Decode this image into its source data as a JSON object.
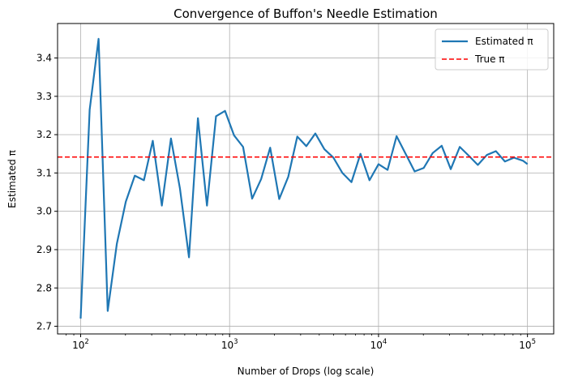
{
  "chart_data": {
    "type": "line",
    "title": "Convergence of Buffon's Needle Estimation",
    "xlabel": "Number of Drops (log scale)",
    "ylabel": "Estimated π",
    "xscale": "log",
    "xlim": [
      70,
      150000
    ],
    "ylim": [
      2.68,
      3.49
    ],
    "grid": true,
    "legend_position": "top-right",
    "x_ticks": [
      {
        "value": 100,
        "base": "10",
        "exp": "2"
      },
      {
        "value": 1000,
        "base": "10",
        "exp": "3"
      },
      {
        "value": 10000,
        "base": "10",
        "exp": "4"
      },
      {
        "value": 100000,
        "base": "10",
        "exp": "5"
      }
    ],
    "y_ticks": [
      {
        "value": 2.7,
        "label": "2.7"
      },
      {
        "value": 2.8,
        "label": "2.8"
      },
      {
        "value": 2.9,
        "label": "2.9"
      },
      {
        "value": 3.0,
        "label": "3.0"
      },
      {
        "value": 3.1,
        "label": "3.1"
      },
      {
        "value": 3.2,
        "label": "3.2"
      },
      {
        "value": 3.3,
        "label": "3.3"
      },
      {
        "value": 3.4,
        "label": "3.4"
      }
    ],
    "series": [
      {
        "name": "Estimated π",
        "style": "solid",
        "color": "#1f77b4",
        "x": [
          100,
          115,
          132,
          152,
          175,
          201,
          231,
          266,
          305,
          351,
          404,
          464,
          534,
          613,
          705,
          811,
          932,
          1072,
          1232,
          1417,
          1629,
          1873,
          2154,
          2477,
          2848,
          3275,
          3765,
          4329,
          4977,
          5722,
          6579,
          7565,
          8697,
          10000,
          11498,
          13219,
          15199,
          17475,
          20092,
          23101,
          26561,
          30539,
          35112,
          40370,
          46416,
          53367,
          61359,
          70548,
          81113,
          93260,
          100000
        ],
        "y": [
          2.72,
          3.265,
          3.45,
          2.74,
          2.915,
          3.025,
          3.093,
          3.081,
          3.184,
          3.015,
          3.19,
          3.06,
          2.88,
          3.243,
          3.015,
          3.248,
          3.262,
          3.198,
          3.168,
          3.033,
          3.084,
          3.166,
          3.032,
          3.09,
          3.195,
          3.17,
          3.203,
          3.162,
          3.14,
          3.1,
          3.076,
          3.15,
          3.081,
          3.123,
          3.108,
          3.196,
          3.15,
          3.104,
          3.113,
          3.152,
          3.171,
          3.11,
          3.168,
          3.145,
          3.121,
          3.147,
          3.157,
          3.13,
          3.14,
          3.132,
          3.123
        ]
      },
      {
        "name": "True π",
        "style": "dashed",
        "color": "#ff0000",
        "y_constant": 3.14159
      }
    ]
  }
}
